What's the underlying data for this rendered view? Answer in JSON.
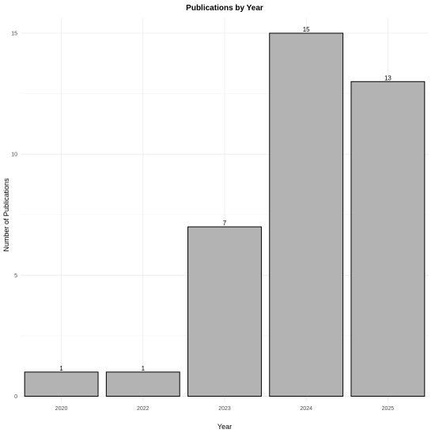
{
  "chart_data": {
    "type": "bar",
    "title": "Publications by Year",
    "xlabel": "Year",
    "ylabel": "Number of Publications",
    "categories": [
      "2020",
      "2022",
      "2023",
      "2024",
      "2025"
    ],
    "values": [
      1,
      1,
      7,
      15,
      13
    ],
    "data_labels": [
      "1",
      "1",
      "7",
      "15",
      "13"
    ],
    "ylim": [
      0,
      15.7
    ],
    "yticks": [
      0,
      5,
      10,
      15
    ],
    "ytick_labels": [
      "0",
      "5",
      "10",
      "15"
    ],
    "grid": true,
    "legend": "none",
    "bar_fill": "#b3b3b3",
    "bar_stroke": "#000000"
  }
}
